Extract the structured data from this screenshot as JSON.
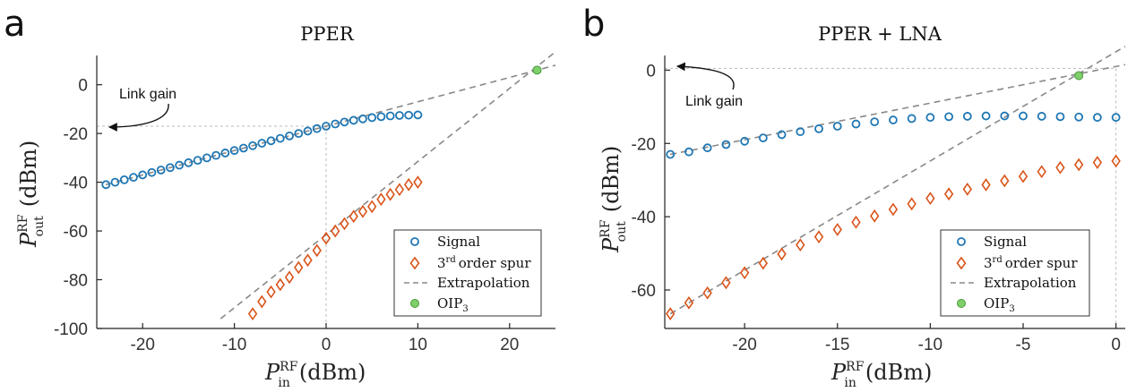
{
  "panels": {
    "a": {
      "letter": "a",
      "title": "PPER",
      "annotation": "Link gain",
      "xlabel": {
        "main": "P",
        "sup": "RF",
        "sub": "in",
        "unit": "(dBm)"
      },
      "ylabel": {
        "main": "P",
        "sup": "RF",
        "sub": "out",
        "unit": "(dBm)"
      },
      "xticks": [
        "-20",
        "-10",
        "0",
        "10",
        "20"
      ],
      "yticks": [
        "0",
        "-20",
        "-40",
        "-60",
        "-80",
        "-100"
      ],
      "legend": {
        "signal": "Signal",
        "spur_sup": "rd",
        "spur_pre": "3",
        "spur_post": "order spur",
        "extrap": "Extrapolation",
        "oip_main": "OIP",
        "oip_sub": "3"
      }
    },
    "b": {
      "letter": "b",
      "title": "PPER + LNA",
      "annotation": "Link gain",
      "xlabel": {
        "main": "P",
        "sup": "RF",
        "sub": "in",
        "unit": "(dBm)"
      },
      "ylabel": {
        "main": "P",
        "sup": "RF",
        "sub": "out",
        "unit": "(dBm)"
      },
      "xticks": [
        "-20",
        "-15",
        "-10",
        "-5",
        "0"
      ],
      "yticks": [
        "0",
        "-20",
        "-40",
        "-60"
      ],
      "legend": {
        "signal": "Signal",
        "spur_sup": "rd",
        "spur_pre": "3",
        "spur_post": "order spur",
        "extrap": "Extrapolation",
        "oip_main": "OIP",
        "oip_sub": "3"
      }
    }
  },
  "chart_data": [
    {
      "type": "scatter",
      "title": "PPER",
      "xlim": [
        -25,
        25
      ],
      "ylim": [
        -100,
        12
      ],
      "xticks": [
        -20,
        -10,
        0,
        10,
        20
      ],
      "yticks": [
        0,
        -20,
        -40,
        -60,
        -80,
        -100
      ],
      "legend_position": "bottom-right",
      "colors": {
        "signal": "#1f77b4",
        "spur": "#d9541a",
        "extrap": "#888888",
        "oip": "#7fcf6b"
      },
      "series": [
        {
          "name": "Signal",
          "marker": "circle",
          "x": [
            -24,
            -23,
            -22,
            -21,
            -20,
            -19,
            -18,
            -17,
            -16,
            -15,
            -14,
            -13,
            -12,
            -11,
            -10,
            -9,
            -8,
            -7,
            -6,
            -5,
            -4,
            -3,
            -2,
            -1,
            0,
            1,
            2,
            3,
            4,
            5,
            6,
            7,
            8,
            9,
            10
          ],
          "y": [
            -41,
            -40,
            -39,
            -38,
            -37,
            -36,
            -35,
            -34,
            -33,
            -32,
            -31,
            -30,
            -29,
            -28,
            -27,
            -26,
            -25,
            -24,
            -23,
            -22,
            -21,
            -20,
            -19,
            -18,
            -17,
            -16.1,
            -15.3,
            -14.6,
            -14,
            -13.5,
            -13.1,
            -12.8,
            -12.6,
            -12.5,
            -12.4
          ]
        },
        {
          "name": "3rd order spur",
          "marker": "diamond",
          "x": [
            -8,
            -7,
            -6,
            -5,
            -4,
            -3,
            -2,
            -1,
            0,
            1,
            2,
            3,
            4,
            5,
            6,
            7,
            8,
            9,
            10
          ],
          "y": [
            -94,
            -89,
            -85,
            -82,
            -79,
            -75,
            -72,
            -68,
            -63,
            -60,
            -57,
            -54,
            -52,
            -50,
            -47,
            -45,
            -43,
            -41,
            -40
          ]
        },
        {
          "name": "Extrapolation",
          "style": "dashed",
          "segments": [
            {
              "x": [
                -24,
                25
              ],
              "y": [
                -41,
                8
              ]
            },
            {
              "x": [
                -11.5,
                25
              ],
              "y": [
                -96,
                13.5
              ]
            }
          ]
        },
        {
          "name": "OIP3",
          "marker": "filled-circle",
          "x": [
            23
          ],
          "y": [
            6
          ]
        }
      ],
      "guides": {
        "y_link_gain": -17,
        "x_at": 0
      }
    },
    {
      "type": "scatter",
      "title": "PPER + LNA",
      "xlim": [
        -24.3,
        0.5
      ],
      "ylim": [
        -70.5,
        4
      ],
      "xticks": [
        -20,
        -15,
        -10,
        -5,
        0
      ],
      "yticks": [
        0,
        -20,
        -40,
        -60
      ],
      "legend_position": "bottom-right",
      "colors": {
        "signal": "#1f77b4",
        "spur": "#d9541a",
        "extrap": "#888888",
        "oip": "#7fcf6b"
      },
      "series": [
        {
          "name": "Signal",
          "marker": "circle",
          "x": [
            -24,
            -23,
            -22,
            -21,
            -20,
            -19,
            -18,
            -17,
            -16,
            -15,
            -14,
            -13,
            -12,
            -11,
            -10,
            -9,
            -8,
            -7,
            -6,
            -5,
            -4,
            -3,
            -2,
            -1,
            0
          ],
          "y": [
            -23,
            -22.3,
            -21.2,
            -20.3,
            -19.4,
            -18.5,
            -17.6,
            -16.8,
            -16,
            -15.3,
            -14.7,
            -14.1,
            -13.6,
            -13.2,
            -12.9,
            -12.7,
            -12.6,
            -12.5,
            -12.5,
            -12.5,
            -12.6,
            -12.7,
            -12.8,
            -12.9,
            -12.9
          ]
        },
        {
          "name": "3rd order spur",
          "marker": "diamond",
          "x": [
            -24,
            -23,
            -22,
            -21,
            -20,
            -19,
            -18,
            -17,
            -16,
            -15,
            -14,
            -13,
            -12,
            -11,
            -10,
            -9,
            -8,
            -7,
            -6,
            -5,
            -4,
            -3,
            -2,
            -1,
            0
          ],
          "y": [
            -66.5,
            -63.5,
            -60.8,
            -58,
            -55.3,
            -52.7,
            -50.2,
            -47.7,
            -45.5,
            -43.5,
            -41.5,
            -39.8,
            -38,
            -36.5,
            -35,
            -33.8,
            -32.5,
            -31.3,
            -30.2,
            -29,
            -27.7,
            -26.6,
            -25.8,
            -25.2,
            -24.8
          ]
        },
        {
          "name": "Extrapolation",
          "style": "dashed",
          "segments": [
            {
              "x": [
                -24,
                0.5
              ],
              "y": [
                -23,
                1.5
              ]
            },
            {
              "x": [
                -24,
                0.5
              ],
              "y": [
                -66.5,
                6.5
              ]
            }
          ]
        },
        {
          "name": "OIP3",
          "marker": "filled-circle",
          "x": [
            -2
          ],
          "y": [
            -1.5
          ]
        }
      ],
      "guides": {
        "y_link_gain": 0.5,
        "x_at": 0
      }
    }
  ]
}
